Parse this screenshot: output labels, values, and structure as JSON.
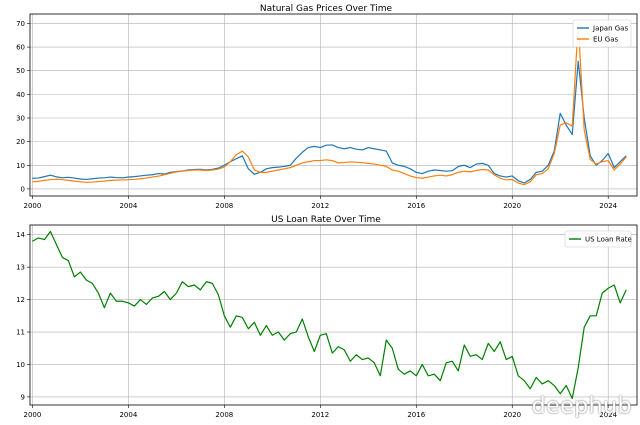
{
  "watermark": "deephub",
  "chart_data": [
    {
      "type": "line",
      "title": "Natural Gas Prices Over Time",
      "xlabel": "",
      "ylabel": "",
      "x_ticks": [
        "2000",
        "2004",
        "2008",
        "2012",
        "2016",
        "2020",
        "2024"
      ],
      "y_ticks": [
        "0",
        "10",
        "20",
        "30",
        "40",
        "50",
        "60",
        "70"
      ],
      "xlim": [
        1999.9,
        2025.2
      ],
      "ylim": [
        -3,
        74
      ],
      "grid": true,
      "legend_position": "top-right",
      "x": [
        2000.0,
        2000.25,
        2000.5,
        2000.75,
        2001.0,
        2001.25,
        2001.5,
        2001.75,
        2002.0,
        2002.25,
        2002.5,
        2002.75,
        2003.0,
        2003.25,
        2003.5,
        2003.75,
        2004.0,
        2004.25,
        2004.5,
        2004.75,
        2005.0,
        2005.25,
        2005.5,
        2005.75,
        2006.0,
        2006.25,
        2006.5,
        2006.75,
        2007.0,
        2007.25,
        2007.5,
        2007.75,
        2008.0,
        2008.25,
        2008.5,
        2008.75,
        2009.0,
        2009.25,
        2009.5,
        2009.75,
        2010.0,
        2010.25,
        2010.5,
        2010.75,
        2011.0,
        2011.25,
        2011.5,
        2011.75,
        2012.0,
        2012.25,
        2012.5,
        2012.75,
        2013.0,
        2013.25,
        2013.5,
        2013.75,
        2014.0,
        2014.25,
        2014.5,
        2014.75,
        2015.0,
        2015.25,
        2015.5,
        2015.75,
        2016.0,
        2016.25,
        2016.5,
        2016.75,
        2017.0,
        2017.25,
        2017.5,
        2017.75,
        2018.0,
        2018.25,
        2018.5,
        2018.75,
        2019.0,
        2019.25,
        2019.5,
        2019.75,
        2020.0,
        2020.25,
        2020.5,
        2020.75,
        2021.0,
        2021.25,
        2021.5,
        2021.75,
        2022.0,
        2022.25,
        2022.5,
        2022.75,
        2023.0,
        2023.25,
        2023.5,
        2023.75,
        2024.0,
        2024.25,
        2024.5,
        2024.75
      ],
      "series": [
        {
          "name": "Japan Gas",
          "color": "#1f77b4",
          "values": [
            4.5,
            4.6,
            5.2,
            5.8,
            5.1,
            4.7,
            4.9,
            4.6,
            4.2,
            4.0,
            4.3,
            4.6,
            4.7,
            5.0,
            4.8,
            4.7,
            5.0,
            5.2,
            5.5,
            5.8,
            6.0,
            6.5,
            6.3,
            7.0,
            7.3,
            7.6,
            8.0,
            8.2,
            8.3,
            8.0,
            8.3,
            8.8,
            10.0,
            11.5,
            12.8,
            14.0,
            8.5,
            6.2,
            7.0,
            8.5,
            9.0,
            9.2,
            9.5,
            10.0,
            13.0,
            15.5,
            17.5,
            18.0,
            17.5,
            18.5,
            18.6,
            17.5,
            17.0,
            17.5,
            16.8,
            16.5,
            17.5,
            17.0,
            16.5,
            16.0,
            11.0,
            10.0,
            9.5,
            8.5,
            7.0,
            6.5,
            7.5,
            8.0,
            7.8,
            7.5,
            7.7,
            9.5,
            10.0,
            9.0,
            10.5,
            10.8,
            10.0,
            6.5,
            5.5,
            5.0,
            5.5,
            3.5,
            2.5,
            4.0,
            7.0,
            7.5,
            10.0,
            16.0,
            32.0,
            27.0,
            23.0,
            54.0,
            30.0,
            14.0,
            10.0,
            12.0,
            15.0,
            9.0,
            11.5,
            14.0
          ]
        },
        {
          "name": "EU Gas",
          "color": "#ff7f0e",
          "values": [
            3.0,
            3.2,
            3.6,
            3.9,
            4.1,
            3.9,
            3.6,
            3.3,
            3.0,
            2.8,
            2.9,
            3.1,
            3.3,
            3.6,
            3.7,
            3.8,
            3.9,
            4.0,
            4.3,
            4.6,
            5.0,
            5.4,
            6.0,
            6.6,
            7.2,
            7.5,
            7.8,
            8.0,
            8.0,
            7.8,
            8.0,
            8.4,
            9.3,
            11.5,
            14.5,
            16.0,
            13.5,
            8.0,
            7.0,
            7.0,
            7.5,
            8.0,
            8.5,
            9.0,
            10.0,
            11.0,
            11.5,
            12.0,
            12.0,
            12.3,
            12.0,
            11.0,
            11.2,
            11.4,
            11.3,
            11.1,
            10.8,
            10.5,
            10.0,
            9.5,
            8.0,
            7.5,
            6.5,
            5.5,
            4.8,
            4.5,
            5.0,
            5.5,
            5.8,
            5.5,
            6.0,
            7.0,
            7.5,
            7.2,
            7.8,
            8.2,
            8.0,
            6.0,
            4.5,
            3.8,
            4.0,
            2.5,
            1.8,
            3.0,
            6.0,
            6.5,
            8.5,
            15.0,
            27.0,
            28.0,
            26.5,
            70.0,
            25.0,
            12.5,
            10.5,
            11.5,
            12.0,
            8.0,
            10.5,
            13.5
          ]
        }
      ]
    },
    {
      "type": "line",
      "title": "US Loan Rate Over Time",
      "xlabel": "",
      "ylabel": "",
      "x_ticks": [
        "2000",
        "2004",
        "2008",
        "2012",
        "2016",
        "2020",
        "2024"
      ],
      "y_ticks": [
        "9",
        "10",
        "11",
        "12",
        "13",
        "14"
      ],
      "xlim": [
        1999.9,
        2025.2
      ],
      "ylim": [
        8.75,
        14.3
      ],
      "grid": true,
      "legend_position": "top-right",
      "x": [
        2000.0,
        2000.25,
        2000.5,
        2000.75,
        2001.0,
        2001.25,
        2001.5,
        2001.75,
        2002.0,
        2002.25,
        2002.5,
        2002.75,
        2003.0,
        2003.25,
        2003.5,
        2003.75,
        2004.0,
        2004.25,
        2004.5,
        2004.75,
        2005.0,
        2005.25,
        2005.5,
        2005.75,
        2006.0,
        2006.25,
        2006.5,
        2006.75,
        2007.0,
        2007.25,
        2007.5,
        2007.75,
        2008.0,
        2008.25,
        2008.5,
        2008.75,
        2009.0,
        2009.25,
        2009.5,
        2009.75,
        2010.0,
        2010.25,
        2010.5,
        2010.75,
        2011.0,
        2011.25,
        2011.5,
        2011.75,
        2012.0,
        2012.25,
        2012.5,
        2012.75,
        2013.0,
        2013.25,
        2013.5,
        2013.75,
        2014.0,
        2014.25,
        2014.5,
        2014.75,
        2015.0,
        2015.25,
        2015.5,
        2015.75,
        2016.0,
        2016.25,
        2016.5,
        2016.75,
        2017.0,
        2017.25,
        2017.5,
        2017.75,
        2018.0,
        2018.25,
        2018.5,
        2018.75,
        2019.0,
        2019.25,
        2019.5,
        2019.75,
        2020.0,
        2020.25,
        2020.5,
        2020.75,
        2021.0,
        2021.25,
        2021.5,
        2021.75,
        2022.0,
        2022.25,
        2022.5,
        2022.75,
        2023.0,
        2023.25,
        2023.5,
        2023.75,
        2024.0,
        2024.25,
        2024.5,
        2024.75
      ],
      "series": [
        {
          "name": "US Loan Rate",
          "color": "#008000",
          "values": [
            13.8,
            13.9,
            13.85,
            14.1,
            13.7,
            13.3,
            13.2,
            12.7,
            12.85,
            12.6,
            12.5,
            12.2,
            11.75,
            12.2,
            11.95,
            11.95,
            11.9,
            11.8,
            12.0,
            11.85,
            12.05,
            12.1,
            12.25,
            12.0,
            12.2,
            12.55,
            12.4,
            12.45,
            12.3,
            12.55,
            12.5,
            12.15,
            11.5,
            11.15,
            11.5,
            11.45,
            11.1,
            11.3,
            10.9,
            11.2,
            10.9,
            11.0,
            10.75,
            10.95,
            11.0,
            11.4,
            10.85,
            10.4,
            10.9,
            10.95,
            10.35,
            10.55,
            10.45,
            10.1,
            10.3,
            10.15,
            10.2,
            10.05,
            9.65,
            10.75,
            10.5,
            9.85,
            9.7,
            9.8,
            9.65,
            10.0,
            9.65,
            9.7,
            9.5,
            10.05,
            10.1,
            9.8,
            10.6,
            10.25,
            10.3,
            10.15,
            10.65,
            10.4,
            10.7,
            10.15,
            10.25,
            9.65,
            9.5,
            9.25,
            9.6,
            9.4,
            9.5,
            9.35,
            9.1,
            9.35,
            8.95,
            9.9,
            11.15,
            11.5,
            11.5,
            12.2,
            12.35,
            12.45,
            11.9,
            12.3
          ]
        }
      ]
    }
  ]
}
